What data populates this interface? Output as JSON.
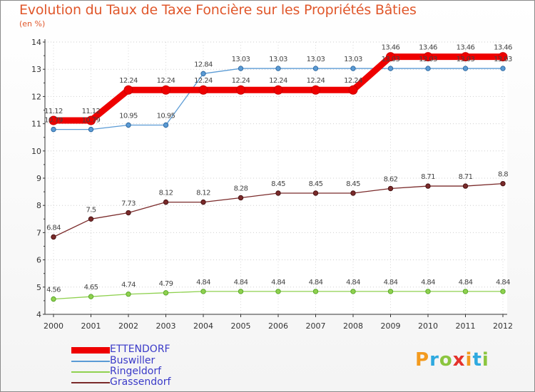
{
  "title": "Evolution du Taux de Taxe Foncière sur les Propriétés Bâties",
  "subtitle": "(en %)",
  "logo": {
    "text": "Proxiti",
    "letters": [
      "P",
      "r",
      "o",
      "x",
      "i",
      "t",
      "i"
    ],
    "colors": [
      "#f39a1e",
      "#2ea9df",
      "#8bc53f",
      "#e4322b",
      "#f39a1e",
      "#2ea9df",
      "#8bc53f"
    ]
  },
  "chart_data": {
    "type": "line",
    "title": "Evolution du Taux de Taxe Foncière sur les Propriétés Bâties",
    "ylabel": "(en %)",
    "x": [
      "2000",
      "2001",
      "2002",
      "2003",
      "2004",
      "2005",
      "2006",
      "2007",
      "2008",
      "2009",
      "2010",
      "2011",
      "2012"
    ],
    "ylim": [
      4,
      14
    ],
    "yticks": [
      4,
      5,
      6,
      7,
      8,
      9,
      10,
      11,
      12,
      13,
      14
    ],
    "series": [
      {
        "name": "ETTENDORF",
        "color": "#ee0000",
        "values": [
          11.12,
          11.12,
          12.24,
          12.24,
          12.24,
          12.24,
          12.24,
          12.24,
          12.24,
          13.46,
          13.46,
          13.46,
          13.46
        ],
        "labels": [
          "11.12",
          "11.12",
          "12.24",
          "12.24",
          "12.24",
          "12.24",
          "12.24",
          "12.24",
          "12.24",
          "13.46",
          "13.46",
          "13.46",
          "13.46"
        ]
      },
      {
        "name": "Buswiller",
        "color": "#5b9bd5",
        "values": [
          10.79,
          10.79,
          10.95,
          10.95,
          12.84,
          13.03,
          13.03,
          13.03,
          13.03,
          13.03,
          13.03,
          13.03,
          13.03
        ],
        "labels": [
          "10.79",
          "10.79",
          "10.95",
          "10.95",
          "12.84",
          "13.03",
          "13.03",
          "13.03",
          "13.03",
          "13.03",
          "13.03",
          "13.03",
          "13.03"
        ]
      },
      {
        "name": "Ringeldorf",
        "color": "#8fd14f",
        "values": [
          4.56,
          4.65,
          4.74,
          4.79,
          4.84,
          4.84,
          4.84,
          4.84,
          4.84,
          4.84,
          4.84,
          4.84,
          4.84
        ],
        "labels": [
          "4.56",
          "4.65",
          "4.74",
          "4.79",
          "4.84",
          "4.84",
          "4.84",
          "4.84",
          "4.84",
          "4.84",
          "4.84",
          "4.84",
          "4.84"
        ]
      },
      {
        "name": "Grassendorf",
        "color": "#7a2a2a",
        "values": [
          6.84,
          7.5,
          7.73,
          8.12,
          8.12,
          8.28,
          8.45,
          8.45,
          8.45,
          8.62,
          8.71,
          8.71,
          8.8
        ],
        "labels": [
          "6.84",
          "7.5",
          "7.73",
          "8.12",
          "8.12",
          "8.28",
          "8.45",
          "8.45",
          "8.45",
          "8.62",
          "8.71",
          "8.71",
          "8.8"
        ]
      }
    ]
  }
}
